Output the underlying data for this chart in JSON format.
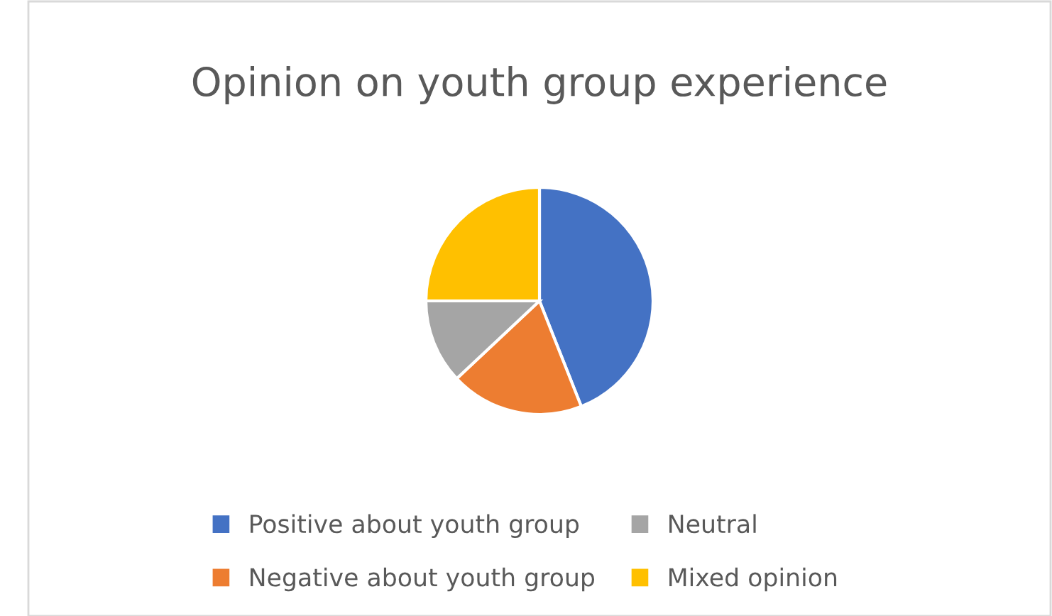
{
  "chart_data": {
    "type": "pie",
    "title": "Opinion on youth group experience",
    "categories": [
      "Positive about youth group",
      "Negative about youth group",
      "Neutral",
      "Mixed opinion"
    ],
    "values": [
      44,
      19,
      12,
      25
    ],
    "colors": [
      "#4472c4",
      "#ed7d31",
      "#a5a5a5",
      "#ffc000"
    ],
    "legend": "bottom"
  }
}
